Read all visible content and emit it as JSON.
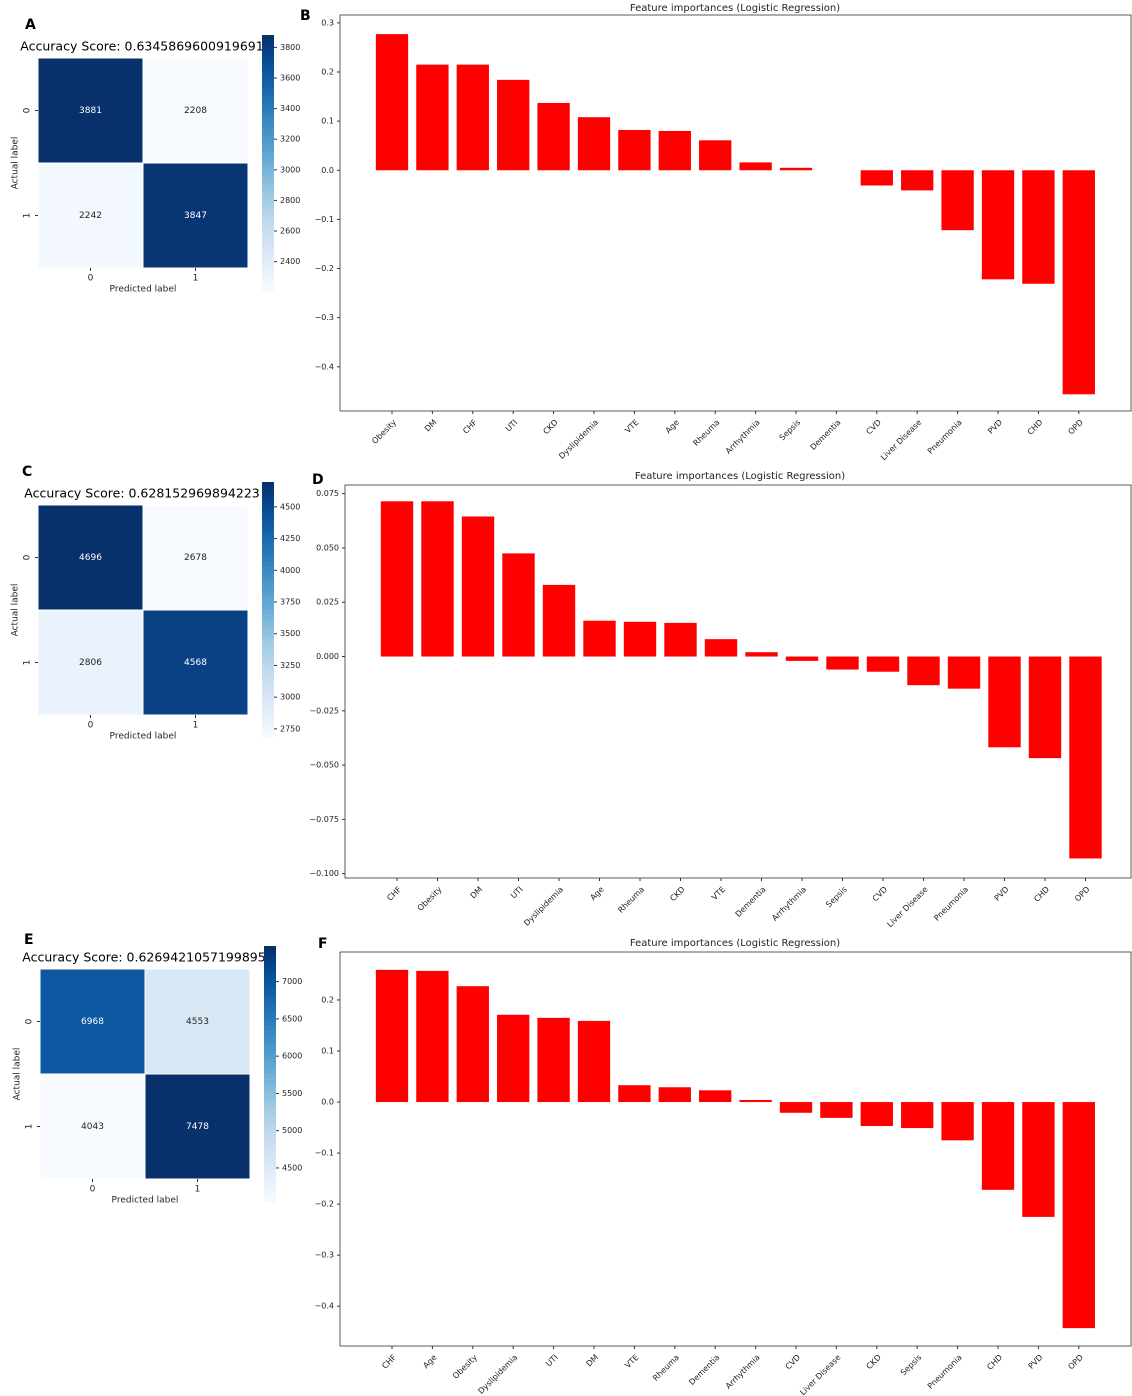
{
  "chart_data": [
    {
      "type": "heatmap",
      "panel_label": "A",
      "title": "Accuracy Score: 0.6345869600919691",
      "xlabel": "Predicted label",
      "ylabel": "Actual label",
      "x_categories": [
        "0",
        "1"
      ],
      "y_categories": [
        "0",
        "1"
      ],
      "values": [
        [
          3881,
          2208
        ],
        [
          2242,
          3847
        ]
      ],
      "colormap": "Blues",
      "colorbar_lim": [
        2208,
        3881
      ],
      "colorbar_ticks": [
        2400,
        2600,
        2800,
        3000,
        3200,
        3400,
        3600,
        3800
      ]
    },
    {
      "type": "bar",
      "panel_label": "B",
      "title": "Feature importances (Logistic Regression)",
      "categories": [
        "Obesity",
        "DM",
        "CHF",
        "UTI",
        "CKD",
        "Dyslipidemia",
        "VTE",
        "Age",
        "Rheuma",
        "Arrhythmia",
        "Sepsis",
        "Dementia",
        "CVD",
        "Liver Disease",
        "Pneumonia",
        "PVD",
        "CHD",
        "OPD"
      ],
      "values": [
        0.277,
        0.215,
        0.215,
        0.184,
        0.137,
        0.108,
        0.082,
        0.08,
        0.061,
        0.016,
        0.005,
        0,
        -0.031,
        -0.041,
        -0.122,
        -0.222,
        -0.231,
        -0.456
      ],
      "color": "#ff0000",
      "ylim": [
        -0.49,
        0.316
      ],
      "yticks": [
        {
          "value": -0.4,
          "label": "−0.4"
        },
        {
          "value": -0.3,
          "label": "−0.3"
        },
        {
          "value": -0.2,
          "label": "−0.2"
        },
        {
          "value": -0.1,
          "label": "−0.1"
        },
        {
          "value": 0,
          "label": "0.0"
        },
        0.1,
        0.2,
        0.3
      ]
    },
    {
      "type": "heatmap",
      "panel_label": "C",
      "title": "Accuracy Score: 0.628152969894223",
      "xlabel": "Predicted label",
      "ylabel": "Actual label",
      "x_categories": [
        "0",
        "1"
      ],
      "y_categories": [
        "0",
        "1"
      ],
      "values": [
        [
          4696,
          2678
        ],
        [
          2806,
          4568
        ]
      ],
      "colormap": "Blues",
      "colorbar_lim": [
        2678,
        4696
      ],
      "colorbar_ticks": [
        2750,
        3000,
        3250,
        3500,
        3750,
        4000,
        4250,
        4500
      ]
    },
    {
      "type": "bar",
      "panel_label": "D",
      "title": "Feature importances (Logistic Regression)",
      "categories": [
        "CHF",
        "Obesity",
        "DM",
        "UTI",
        "Dyslipidemia",
        "Age",
        "Rheuma",
        "CKD",
        "VTE",
        "Dementia",
        "Arrhythmia",
        "Sepsis",
        "CVD",
        "Liver Disease",
        "Pneumonia",
        "PVD",
        "CHD",
        "OPD"
      ],
      "values": [
        0.0715,
        0.0715,
        0.0645,
        0.0475,
        0.033,
        0.0165,
        0.016,
        0.0155,
        0.008,
        0.002,
        -0.002,
        -0.006,
        -0.007,
        -0.0132,
        -0.0148,
        -0.0418,
        -0.0468,
        -0.093
      ],
      "color": "#ff0000",
      "ylim": [
        -0.102,
        0.079
      ],
      "yticks": [
        {
          "value": -0.1,
          "label": "−0.100"
        },
        {
          "value": -0.075,
          "label": "−0.075"
        },
        {
          "value": -0.05,
          "label": "−0.050"
        },
        {
          "value": -0.025,
          "label": "−0.025"
        },
        {
          "value": 0,
          "label": "0.000"
        },
        0.025,
        {
          "value": 0.05,
          "label": "0.050"
        },
        0.075
      ]
    },
    {
      "type": "heatmap",
      "panel_label": "E",
      "title": "Accuracy Score: 0.6269421057199895",
      "xlabel": "Predicted label",
      "ylabel": "Actual label",
      "x_categories": [
        "0",
        "1"
      ],
      "y_categories": [
        "0",
        "1"
      ],
      "values": [
        [
          6968,
          4553
        ],
        [
          4043,
          7478
        ]
      ],
      "colormap": "Blues",
      "colorbar_lim": [
        4043,
        7478
      ],
      "colorbar_ticks": [
        4500,
        5000,
        5500,
        6000,
        6500,
        7000
      ]
    },
    {
      "type": "bar",
      "panel_label": "F",
      "title": "Feature importances (Logistic Regression)",
      "categories": [
        "CHF",
        "Age",
        "Obesity",
        "Dyslipidemia",
        "UTI",
        "DM",
        "VTE",
        "Rheuma",
        "Dementia",
        "Arrhythmia",
        "CVD",
        "Liver Disease",
        "CKD",
        "Sepsis",
        "Pneumonia",
        "CHD",
        "PVD",
        "OPD"
      ],
      "values": [
        0.259,
        0.257,
        0.227,
        0.171,
        0.165,
        0.159,
        0.033,
        0.029,
        0.023,
        0.004,
        -0.021,
        -0.031,
        -0.047,
        -0.051,
        -0.075,
        -0.172,
        -0.225,
        -0.443
      ],
      "color": "#ff0000",
      "ylim": [
        -0.478,
        0.294
      ],
      "yticks": [
        {
          "value": -0.4,
          "label": "−0.4"
        },
        {
          "value": -0.3,
          "label": "−0.3"
        },
        {
          "value": -0.2,
          "label": "−0.2"
        },
        {
          "value": -0.1,
          "label": "−0.1"
        },
        {
          "value": 0,
          "label": "0.0"
        },
        0.1,
        0.2
      ]
    }
  ]
}
